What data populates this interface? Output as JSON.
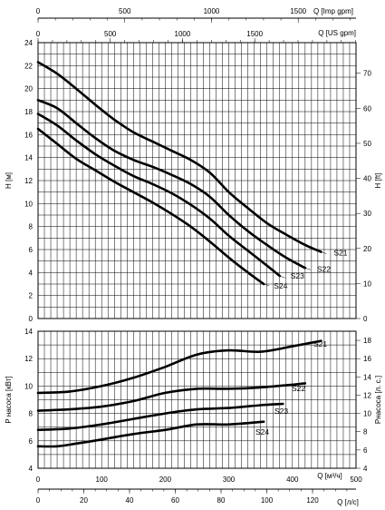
{
  "chart_data": [
    {
      "type": "line",
      "panel": "head",
      "ylabel_left": "H [м]",
      "ylabel_right": "H [ft]",
      "ylim_left": [
        0,
        24
      ],
      "ylim_right": [
        0,
        79
      ],
      "left_ticks": [
        0,
        2,
        4,
        6,
        8,
        10,
        12,
        14,
        16,
        18,
        20,
        22,
        24
      ],
      "right_ticks": [
        0,
        10,
        20,
        30,
        40,
        50,
        60,
        70
      ],
      "top_axis_1": {
        "label": "Q [Imp gpm]",
        "ticks": [
          0,
          500,
          1000,
          1500
        ]
      },
      "top_axis_2": {
        "label": "Q [US gpm]",
        "ticks": [
          0,
          500,
          1000,
          1500
        ]
      },
      "series": [
        {
          "name": "S21",
          "x": [
            0,
            30,
            60,
            90,
            120,
            150,
            180,
            210,
            240,
            270,
            300,
            330,
            360,
            390,
            420,
            445
          ],
          "y": [
            22.3,
            21.3,
            20.0,
            18.6,
            17.3,
            16.2,
            15.4,
            14.6,
            13.8,
            12.7,
            11.0,
            9.6,
            8.3,
            7.3,
            6.4,
            5.8
          ]
        },
        {
          "name": "S22",
          "x": [
            0,
            30,
            60,
            90,
            120,
            150,
            180,
            210,
            240,
            270,
            300,
            330,
            360,
            390,
            420
          ],
          "y": [
            19.0,
            18.3,
            17.0,
            15.7,
            14.6,
            13.8,
            13.2,
            12.5,
            11.7,
            10.6,
            9.0,
            7.6,
            6.4,
            5.3,
            4.4
          ]
        },
        {
          "name": "S23",
          "x": [
            0,
            30,
            60,
            90,
            120,
            150,
            180,
            210,
            240,
            270,
            300,
            330,
            360,
            380
          ],
          "y": [
            17.8,
            16.8,
            15.5,
            14.3,
            13.3,
            12.4,
            11.7,
            10.9,
            9.9,
            8.7,
            7.2,
            5.9,
            4.6,
            3.7
          ]
        },
        {
          "name": "S24",
          "x": [
            0,
            30,
            60,
            90,
            120,
            150,
            180,
            210,
            240,
            270,
            300,
            330,
            355
          ],
          "y": [
            16.5,
            15.2,
            13.9,
            12.9,
            11.9,
            11.0,
            10.1,
            9.1,
            8.0,
            6.7,
            5.3,
            4.0,
            3.0
          ]
        }
      ]
    },
    {
      "type": "line",
      "panel": "power",
      "ylabel_left": "P насоса [кВт]",
      "ylabel_right": "Pнасоса [л. с.]",
      "ylim_left": [
        4,
        14
      ],
      "ylim_right": [
        4,
        19
      ],
      "left_ticks": [
        4,
        6,
        8,
        10,
        12,
        14
      ],
      "right_ticks": [
        4,
        6,
        8,
        10,
        12,
        14,
        16,
        18
      ],
      "x_axis_1": {
        "label": "Q [м³/ч]",
        "ticks": [
          0,
          100,
          200,
          300,
          400,
          500
        ],
        "xlim": [
          0,
          500
        ]
      },
      "x_axis_2": {
        "label": "Q [л/с]",
        "ticks": [
          0,
          20,
          40,
          60,
          80,
          100,
          120
        ],
        "xlim": [
          0,
          139
        ]
      },
      "series": [
        {
          "name": "S21",
          "x": [
            0,
            50,
            100,
            150,
            200,
            250,
            300,
            350,
            400,
            445
          ],
          "y": [
            9.5,
            9.6,
            10.0,
            10.6,
            11.4,
            12.3,
            12.6,
            12.5,
            12.9,
            13.3
          ]
        },
        {
          "name": "S22",
          "x": [
            0,
            50,
            100,
            150,
            200,
            250,
            300,
            350,
            400,
            420
          ],
          "y": [
            8.2,
            8.3,
            8.5,
            8.9,
            9.5,
            9.8,
            9.8,
            9.9,
            10.1,
            10.2
          ]
        },
        {
          "name": "S23",
          "x": [
            0,
            50,
            100,
            150,
            200,
            250,
            300,
            350,
            385
          ],
          "y": [
            6.8,
            6.9,
            7.2,
            7.6,
            8.0,
            8.3,
            8.4,
            8.6,
            8.7
          ]
        },
        {
          "name": "S24",
          "x": [
            0,
            30,
            60,
            100,
            150,
            200,
            250,
            300,
            355
          ],
          "y": [
            5.6,
            5.6,
            5.8,
            6.1,
            6.5,
            6.8,
            7.2,
            7.2,
            7.4
          ]
        }
      ]
    }
  ]
}
